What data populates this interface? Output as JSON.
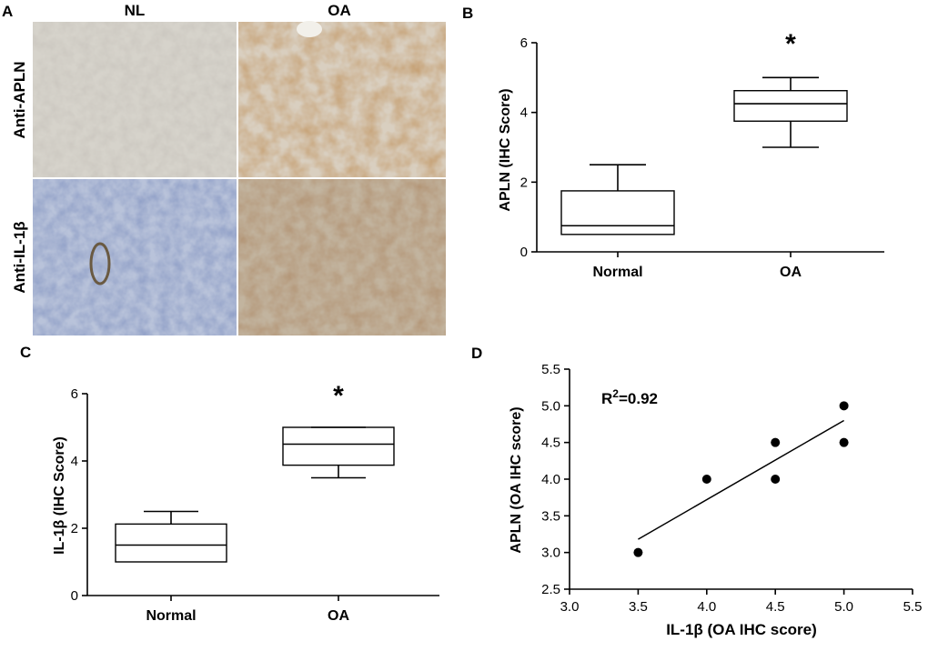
{
  "panels": {
    "A": {
      "letter": "A",
      "col_labels": [
        "NL",
        "OA"
      ],
      "row_labels": [
        "Anti-APLN",
        "Anti-IL-1β"
      ]
    },
    "B": {
      "letter": "B"
    },
    "C": {
      "letter": "C"
    },
    "D": {
      "letter": "D"
    }
  },
  "chart_data": [
    {
      "panel": "B",
      "type": "box",
      "categories": [
        "Normal",
        "OA"
      ],
      "ylabel": "APLN (IHC Score)",
      "xlabel": "",
      "ylim": [
        0,
        6
      ],
      "yticks": [
        "0",
        "2",
        "4",
        "6"
      ],
      "boxes": [
        {
          "name": "Normal",
          "min": 0.5,
          "q1": 0.5,
          "median": 0.75,
          "q3": 1.75,
          "max": 2.5
        },
        {
          "name": "OA",
          "min": 3.0,
          "q1": 3.75,
          "median": 4.25,
          "q3": 4.625,
          "max": 5.0
        }
      ],
      "annotations": [
        {
          "category": "OA",
          "text": "*"
        }
      ]
    },
    {
      "panel": "C",
      "type": "box",
      "categories": [
        "Normal",
        "OA"
      ],
      "ylabel": "IL-1β (IHC Score)",
      "xlabel": "",
      "ylim": [
        0,
        6
      ],
      "yticks": [
        "0",
        "2",
        "4",
        "6"
      ],
      "boxes": [
        {
          "name": "Normal",
          "min": 1.0,
          "q1": 1.0,
          "median": 1.5,
          "q3": 2.125,
          "max": 2.5
        },
        {
          "name": "OA",
          "min": 3.5,
          "q1": 3.875,
          "median": 4.5,
          "q3": 5.0,
          "max": 5.0
        }
      ],
      "annotations": [
        {
          "category": "OA",
          "text": "*"
        }
      ]
    },
    {
      "panel": "D",
      "type": "scatter",
      "xlabel": "IL-1β (OA IHC score)",
      "ylabel": "APLN (OA IHC score)",
      "xlim": [
        3.0,
        5.5
      ],
      "ylim": [
        2.5,
        5.5
      ],
      "xticks": [
        "3.0",
        "3.5",
        "4.0",
        "4.5",
        "5.0",
        "5.5"
      ],
      "yticks": [
        "2.5",
        "3.0",
        "3.5",
        "4.0",
        "4.5",
        "5.0",
        "5.5"
      ],
      "points": [
        [
          3.5,
          3.0
        ],
        [
          4.0,
          4.0
        ],
        [
          4.5,
          4.5
        ],
        [
          4.5,
          4.0
        ],
        [
          5.0,
          5.0
        ],
        [
          5.0,
          4.5
        ]
      ],
      "fit_line": {
        "x": [
          3.5,
          5.0
        ],
        "y": [
          3.18,
          4.8
        ]
      },
      "annotation_prefix": "R",
      "annotation_sup": "2",
      "annotation_value": "=0.92"
    }
  ]
}
